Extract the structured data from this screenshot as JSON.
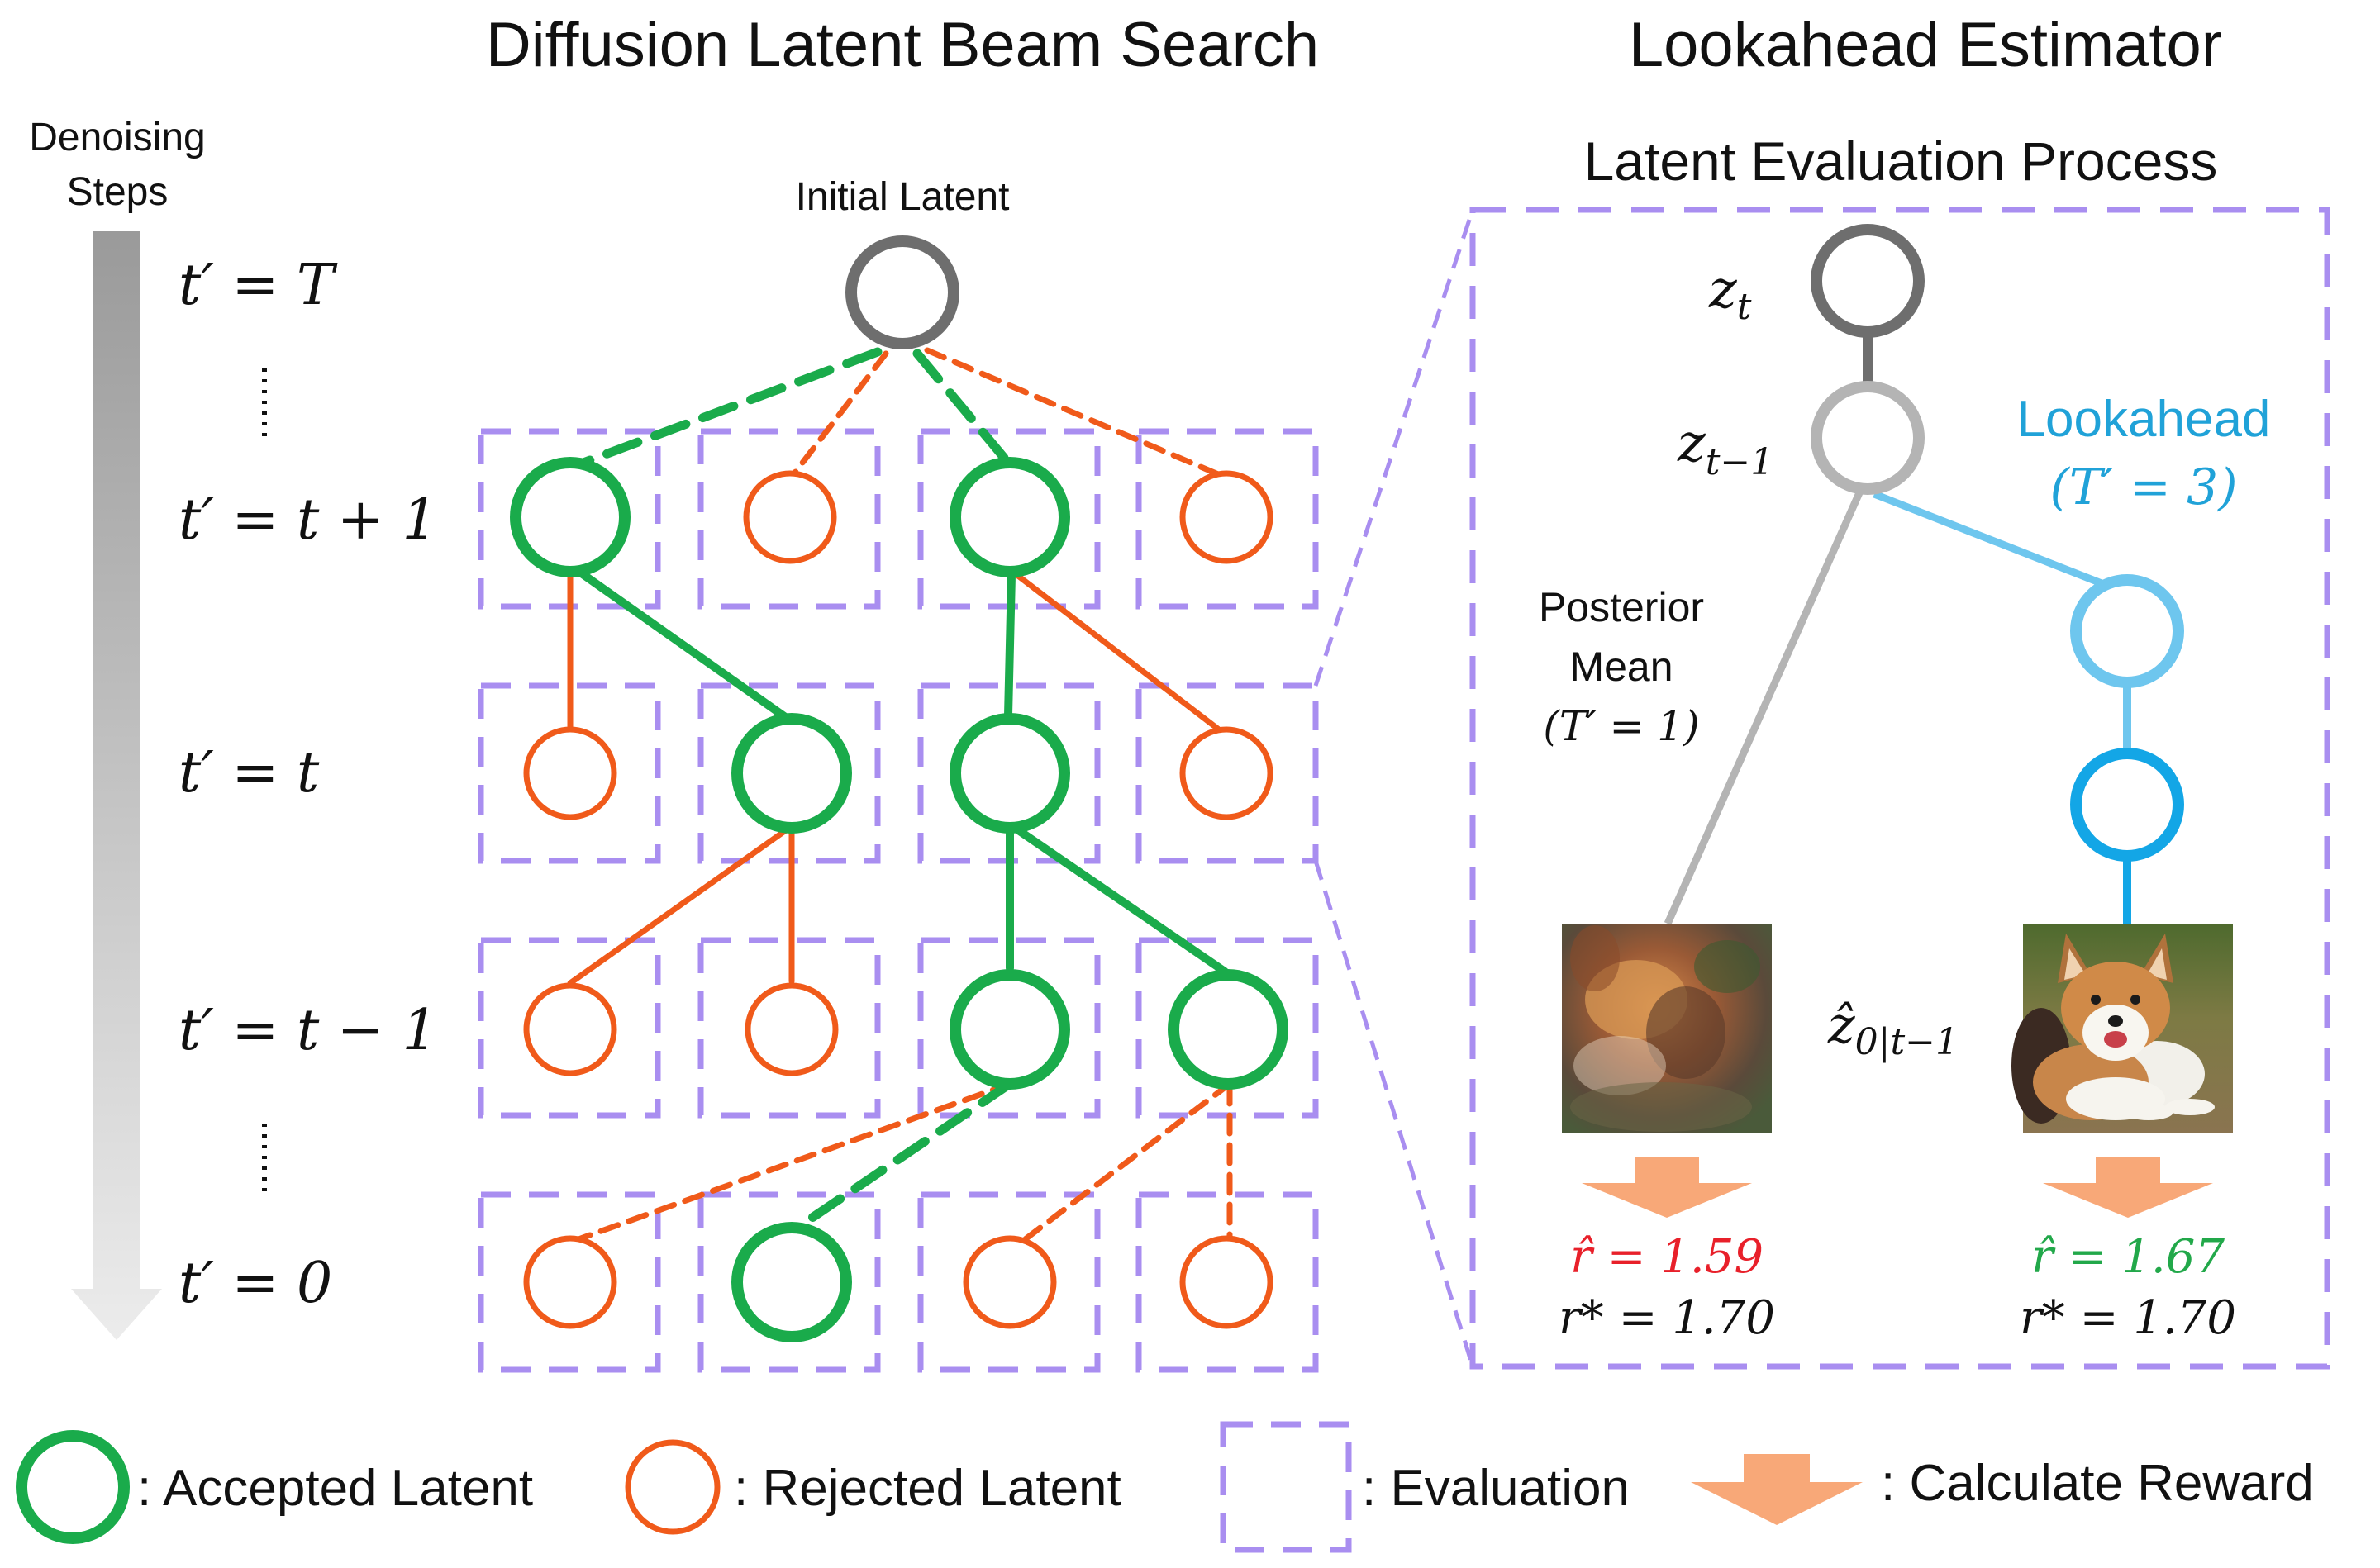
{
  "titles": {
    "left": "Diffusion Latent Beam Search",
    "right": "Lookahead Estimator",
    "process": "Latent Evaluation Process"
  },
  "denoising_label": [
    "Denoising",
    "Steps"
  ],
  "initial_latent_label": "Initial Latent",
  "steps": [
    "t′ = T",
    "t′ = t + 1",
    "t′ = t",
    "t′ = t − 1",
    "t′ = 0"
  ],
  "latent_labels": {
    "z_t": "z",
    "z_t_sub": "t",
    "z_t1": "z",
    "z_t1_sub": "t−1"
  },
  "lookahead": {
    "label": "Lookahead",
    "param": "(T′ = 3)"
  },
  "posterior": {
    "line1": "Posterior",
    "line2": "Mean",
    "param": "(T′ = 1)"
  },
  "z0_label": {
    "base": "ẑ",
    "sub": "0|t−1"
  },
  "rewards": {
    "posterior_est": "r̂ = 1.59",
    "posterior_true": "r* = 1.70",
    "lookahead_est": "r̂ = 1.67",
    "lookahead_true": "r* = 1.70"
  },
  "legend": {
    "accepted": ": Accepted Latent",
    "rejected": ": Rejected Latent",
    "evaluation": ": Evaluation",
    "reward": ": Calculate Reward"
  },
  "colors": {
    "accepted": "#1aab4b",
    "rejected": "#f05a1a",
    "evaluation": "#a98ef0",
    "reward_arrow": "#f8a878",
    "root": "#6e6e6e",
    "z_t1": "#b4b4b4",
    "lookahead_light": "#6ec6ee",
    "lookahead_dark": "#13a6e6",
    "reward_bad": "#e8202a",
    "reward_good": "#22a84a",
    "lookahead_text": "#20a2d8"
  }
}
